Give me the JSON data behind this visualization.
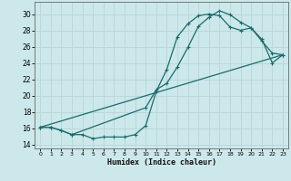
{
  "xlabel": "Humidex (Indice chaleur)",
  "bg_color": "#cce8ea",
  "grid_color": "#b8d8da",
  "line_color": "#1a6b6b",
  "xlim": [
    -0.5,
    23.5
  ],
  "ylim": [
    13.5,
    31.5
  ],
  "xticks": [
    0,
    1,
    2,
    3,
    4,
    5,
    6,
    7,
    8,
    9,
    10,
    11,
    12,
    13,
    14,
    15,
    16,
    17,
    18,
    19,
    20,
    21,
    22,
    23
  ],
  "yticks": [
    14,
    16,
    18,
    20,
    22,
    24,
    26,
    28,
    30
  ],
  "curve1_x": [
    0,
    1,
    2,
    3,
    4,
    5,
    6,
    7,
    8,
    9,
    10,
    11,
    12,
    13,
    14,
    15,
    16,
    17,
    18,
    19,
    20,
    21,
    22,
    23
  ],
  "curve1_y": [
    16.1,
    16.1,
    15.7,
    15.2,
    15.2,
    14.7,
    14.9,
    14.9,
    14.9,
    15.2,
    16.3,
    20.5,
    23.2,
    27.2,
    28.8,
    29.8,
    30.0,
    29.8,
    28.4,
    28.0,
    28.3,
    26.7,
    25.2,
    25.0
  ],
  "curve2_x": [
    0,
    1,
    2,
    3,
    10,
    11,
    12,
    13,
    14,
    15,
    16,
    17,
    18,
    19,
    20,
    21,
    22,
    23
  ],
  "curve2_y": [
    16.1,
    16.1,
    15.7,
    15.2,
    18.5,
    20.7,
    21.5,
    23.5,
    25.9,
    28.5,
    29.6,
    30.4,
    29.9,
    29.0,
    28.3,
    26.9,
    24.0,
    25.0
  ],
  "curve3_x": [
    0,
    23
  ],
  "curve3_y": [
    16.1,
    25.0
  ]
}
